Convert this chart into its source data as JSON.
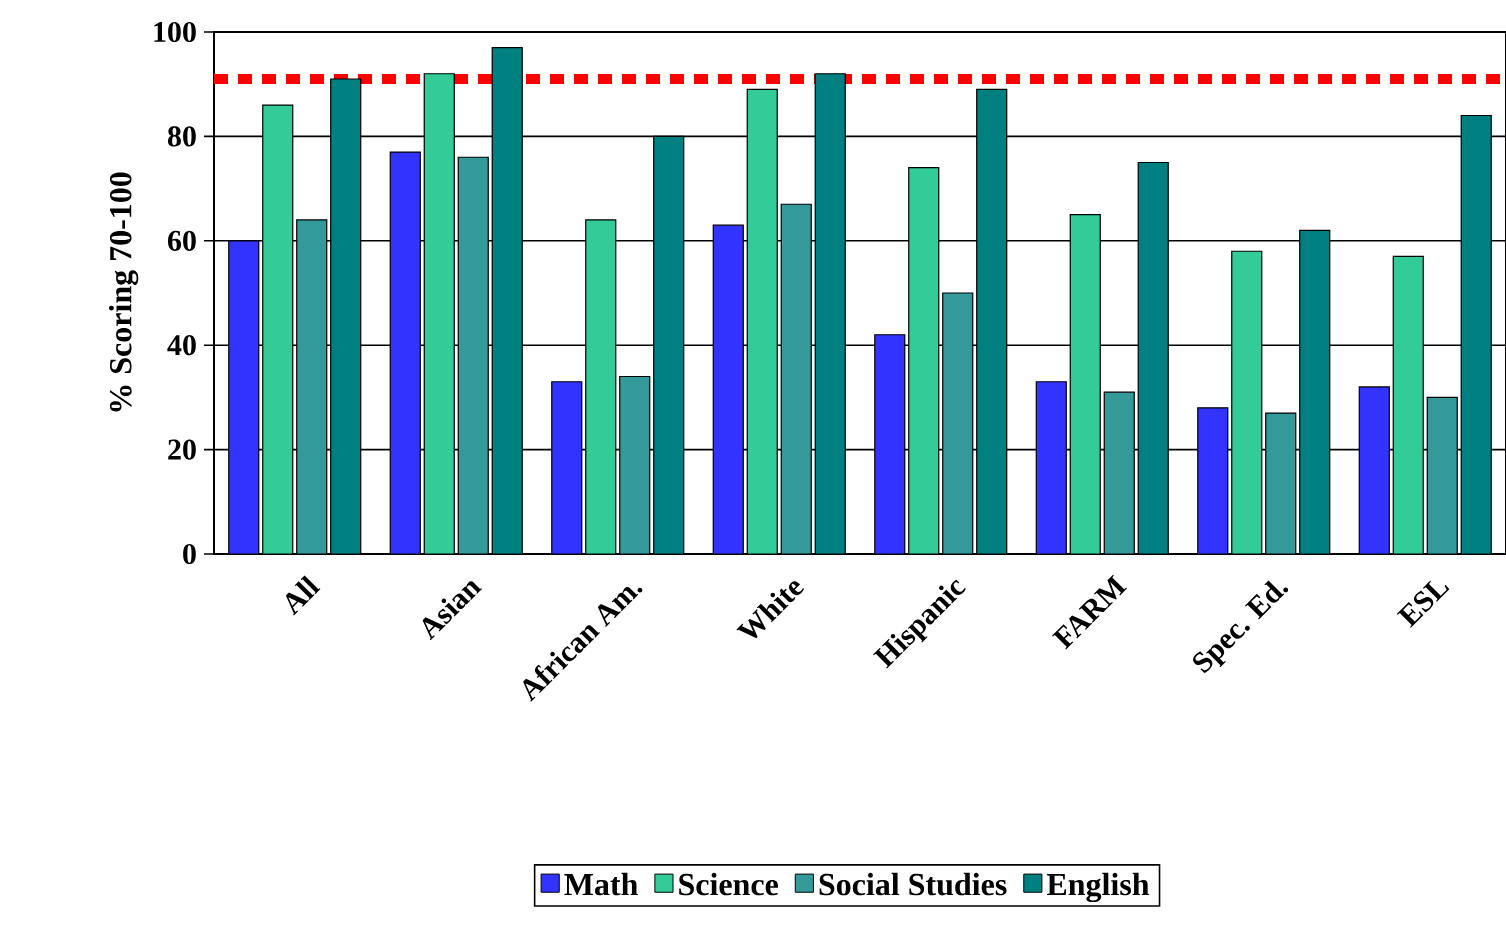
{
  "chart_data": {
    "type": "bar",
    "ylabel": "% Scoring 70-100",
    "categories": [
      "All",
      "Asian",
      "African Am.",
      "White",
      "Hispanic",
      "FARM",
      "Spec. Ed.",
      "ESL"
    ],
    "series": [
      {
        "name": "Math",
        "color": "#3333ff",
        "values": [
          60,
          77,
          33,
          63,
          42,
          33,
          28,
          32
        ]
      },
      {
        "name": "Science",
        "color": "#33cc99",
        "values": [
          86,
          92,
          64,
          89,
          74,
          65,
          58,
          57
        ]
      },
      {
        "name": "Social Studies",
        "color": "#339999",
        "values": [
          64,
          76,
          34,
          67,
          50,
          31,
          27,
          30
        ]
      },
      {
        "name": "English",
        "color": "#008080",
        "values": [
          91,
          97,
          80,
          92,
          89,
          75,
          62,
          84
        ]
      }
    ],
    "ylim": [
      0,
      100
    ],
    "yticks": [
      0,
      20,
      40,
      60,
      80,
      100
    ],
    "grid": "y",
    "legend": "bottom",
    "ref_lines": [
      {
        "axis": "y",
        "value": 91,
        "color": "#ff0000",
        "line_style": "dotted"
      }
    ]
  }
}
